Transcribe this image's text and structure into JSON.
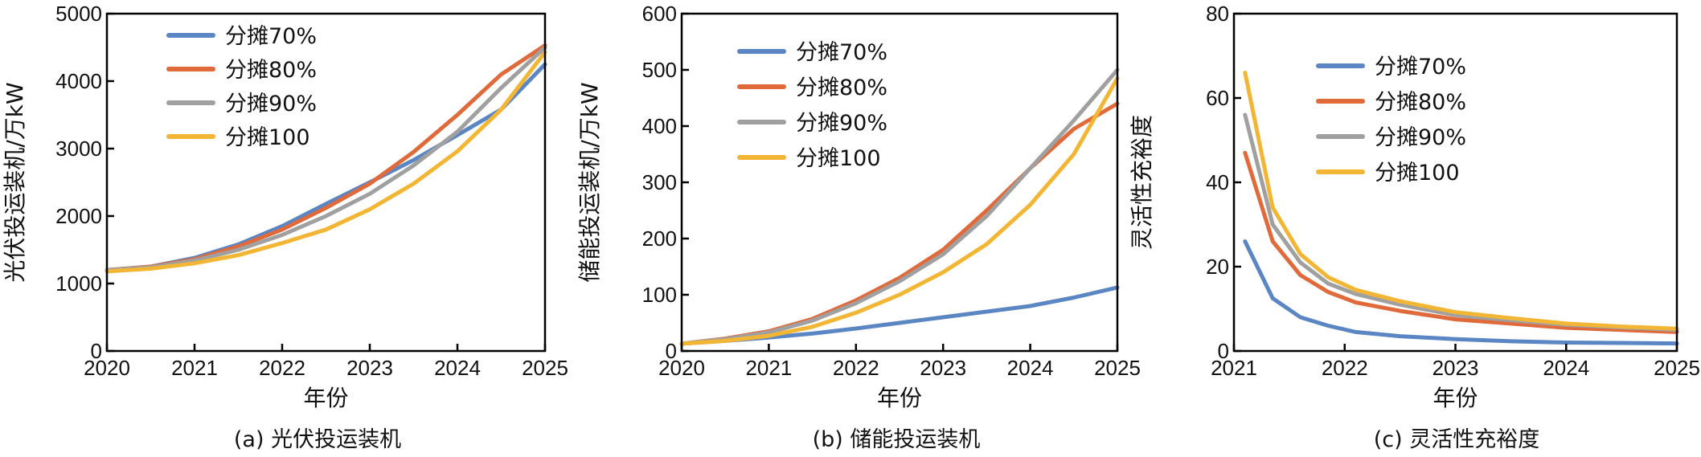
{
  "colors": {
    "s70": "#5b86c4",
    "s80": "#e06a3a",
    "s90": "#a0a0a0",
    "s100": "#f3b634"
  },
  "chart_data": [
    {
      "type": "line",
      "panel": "a",
      "caption": "(a) 光伏投运装机",
      "xlabel": "年份",
      "ylabel": "光伏投运装机/万kW",
      "xlim": [
        2020,
        2025
      ],
      "ylim": [
        0,
        5000
      ],
      "xticks": [
        "2020",
        "2021",
        "2022",
        "2023",
        "2024",
        "2025"
      ],
      "yticks": [
        "0",
        "1000",
        "2000",
        "3000",
        "4000",
        "5000"
      ],
      "legend_position": "top-left",
      "series": [
        {
          "name": "分摊70%",
          "color_key": "s70",
          "x": [
            2020,
            2020.5,
            2021,
            2021.5,
            2022,
            2022.5,
            2023,
            2023.5,
            2024,
            2024.5,
            2025
          ],
          "y": [
            1200,
            1250,
            1380,
            1580,
            1850,
            2180,
            2500,
            2830,
            3200,
            3580,
            4250
          ]
        },
        {
          "name": "分摊80%",
          "color_key": "s80",
          "x": [
            2020,
            2020.5,
            2021,
            2021.5,
            2022,
            2022.5,
            2023,
            2023.5,
            2024,
            2024.5,
            2025
          ],
          "y": [
            1200,
            1250,
            1360,
            1550,
            1800,
            2120,
            2480,
            2950,
            3500,
            4100,
            4530
          ]
        },
        {
          "name": "分摊90%",
          "color_key": "s90",
          "x": [
            2020,
            2020.5,
            2021,
            2021.5,
            2022,
            2022.5,
            2023,
            2023.5,
            2024,
            2024.5,
            2025
          ],
          "y": [
            1200,
            1240,
            1340,
            1500,
            1720,
            2000,
            2330,
            2750,
            3250,
            3900,
            4500
          ]
        },
        {
          "name": "分摊100",
          "color_key": "s100",
          "x": [
            2020,
            2020.5,
            2021,
            2021.5,
            2022,
            2022.5,
            2023,
            2023.5,
            2024,
            2024.5,
            2025
          ],
          "y": [
            1180,
            1220,
            1300,
            1420,
            1600,
            1800,
            2100,
            2480,
            2960,
            3580,
            4430
          ]
        }
      ]
    },
    {
      "type": "line",
      "panel": "b",
      "caption": "(b) 储能投运装机",
      "xlabel": "年份",
      "ylabel": "储能投运装机/万kW",
      "xlim": [
        2020,
        2025
      ],
      "ylim": [
        0,
        600
      ],
      "xticks": [
        "2020",
        "2021",
        "2022",
        "2023",
        "2024",
        "2025"
      ],
      "yticks": [
        "0",
        "100",
        "200",
        "300",
        "400",
        "500",
        "600"
      ],
      "legend_position": "top-left",
      "series": [
        {
          "name": "分摊70%",
          "color_key": "s70",
          "x": [
            2020,
            2020.5,
            2021,
            2021.5,
            2022,
            2022.5,
            2023,
            2023.5,
            2024,
            2024.5,
            2025
          ],
          "y": [
            13,
            18,
            24,
            31,
            40,
            50,
            60,
            70,
            80,
            95,
            113
          ]
        },
        {
          "name": "分摊80%",
          "color_key": "s80",
          "x": [
            2020,
            2020.5,
            2021,
            2021.5,
            2022,
            2022.5,
            2023,
            2023.5,
            2024,
            2024.5,
            2025
          ],
          "y": [
            13,
            22,
            35,
            57,
            90,
            130,
            180,
            250,
            325,
            395,
            440
          ]
        },
        {
          "name": "分摊90%",
          "color_key": "s90",
          "x": [
            2020,
            2020.5,
            2021,
            2021.5,
            2022,
            2022.5,
            2023,
            2023.5,
            2024,
            2024.5,
            2025
          ],
          "y": [
            13,
            21,
            33,
            54,
            85,
            124,
            172,
            240,
            325,
            410,
            500
          ]
        },
        {
          "name": "分摊100",
          "color_key": "s100",
          "x": [
            2020,
            2020.5,
            2021,
            2021.5,
            2022,
            2022.5,
            2023,
            2023.5,
            2024,
            2024.5,
            2025
          ],
          "y": [
            13,
            18,
            27,
            43,
            68,
            100,
            140,
            190,
            260,
            350,
            485
          ]
        }
      ]
    },
    {
      "type": "line",
      "panel": "c",
      "caption": "(c) 灵活性充裕度",
      "xlabel": "年份",
      "ylabel": "灵活性充裕度",
      "xlim": [
        2021,
        2025
      ],
      "ylim": [
        0,
        80
      ],
      "xticks": [
        "2021",
        "2022",
        "2023",
        "2024",
        "2025"
      ],
      "yticks": [
        "0",
        "20",
        "40",
        "60",
        "80"
      ],
      "legend_position": "top-center",
      "series": [
        {
          "name": "分摊70%",
          "color_key": "s70",
          "x": [
            2021.1,
            2021.35,
            2021.6,
            2021.85,
            2022.1,
            2022.5,
            2023,
            2023.5,
            2024,
            2024.5,
            2025
          ],
          "y": [
            26,
            12.5,
            8,
            6,
            4.5,
            3.5,
            2.8,
            2.3,
            2.0,
            1.9,
            1.8
          ]
        },
        {
          "name": "分摊80%",
          "color_key": "s80",
          "x": [
            2021.1,
            2021.35,
            2021.6,
            2021.85,
            2022.1,
            2022.5,
            2023,
            2023.5,
            2024,
            2024.5,
            2025
          ],
          "y": [
            47,
            26,
            18,
            14,
            11.5,
            9.5,
            7.5,
            6.5,
            5.5,
            5.0,
            4.5
          ]
        },
        {
          "name": "分摊90%",
          "color_key": "s90",
          "x": [
            2021.1,
            2021.35,
            2021.6,
            2021.85,
            2022.1,
            2022.5,
            2023,
            2023.5,
            2024,
            2024.5,
            2025
          ],
          "y": [
            56,
            30,
            21,
            16,
            13.5,
            11,
            8.5,
            7.3,
            6.2,
            5.6,
            5.0
          ]
        },
        {
          "name": "分摊100",
          "color_key": "s100",
          "x": [
            2021.1,
            2021.35,
            2021.6,
            2021.85,
            2022.1,
            2022.5,
            2023,
            2023.5,
            2024,
            2024.5,
            2025
          ],
          "y": [
            66,
            34,
            23,
            17.5,
            14.5,
            11.8,
            9.2,
            7.8,
            6.5,
            5.8,
            5.3
          ]
        }
      ]
    }
  ]
}
